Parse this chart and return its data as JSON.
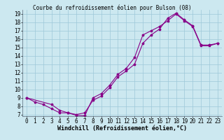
{
  "title": "Courbe du refroidissement éolien pour Bulson (08)",
  "xlabel": "Windchill (Refroidissement éolien,°C)",
  "bg_color": "#cce8f0",
  "line_color": "#880088",
  "marker": "*",
  "xlim": [
    -0.5,
    23.5
  ],
  "ylim": [
    6.8,
    19.5
  ],
  "xticks": [
    0,
    1,
    2,
    3,
    4,
    5,
    6,
    7,
    8,
    9,
    10,
    11,
    12,
    13,
    14,
    15,
    16,
    17,
    18,
    19,
    20,
    21,
    22,
    23
  ],
  "yticks": [
    7,
    8,
    9,
    10,
    11,
    12,
    13,
    14,
    15,
    16,
    17,
    18,
    19
  ],
  "line1_x": [
    0,
    1,
    2,
    3,
    4,
    5,
    6,
    7,
    8,
    9,
    10,
    11,
    12,
    13,
    14,
    15,
    16,
    17,
    18,
    19,
    20,
    21,
    22,
    23
  ],
  "line1_y": [
    9,
    8.5,
    8.2,
    7.7,
    7.2,
    7.2,
    6.9,
    6.85,
    9.0,
    9.5,
    10.5,
    11.8,
    12.5,
    13.8,
    16.5,
    17.0,
    17.5,
    18.2,
    19.0,
    18.2,
    17.5,
    15.2,
    15.2,
    15.5
  ],
  "line2_x": [
    0,
    3,
    4,
    5,
    6,
    7,
    8,
    9,
    10,
    11,
    12,
    13,
    14,
    15,
    16,
    17,
    18,
    19,
    20,
    21,
    22,
    23
  ],
  "line2_y": [
    9,
    8.2,
    7.5,
    7.2,
    7.0,
    7.2,
    8.7,
    9.2,
    10.2,
    11.5,
    12.2,
    13.0,
    15.5,
    16.5,
    17.2,
    18.5,
    19.1,
    18.3,
    17.6,
    15.3,
    15.3,
    15.5
  ],
  "grid_color": "#9dc8d8",
  "title_fontsize": 5.5,
  "tick_fontsize": 5.5,
  "xlabel_fontsize": 6.0,
  "linewidth": 0.8,
  "markersize": 2.5
}
